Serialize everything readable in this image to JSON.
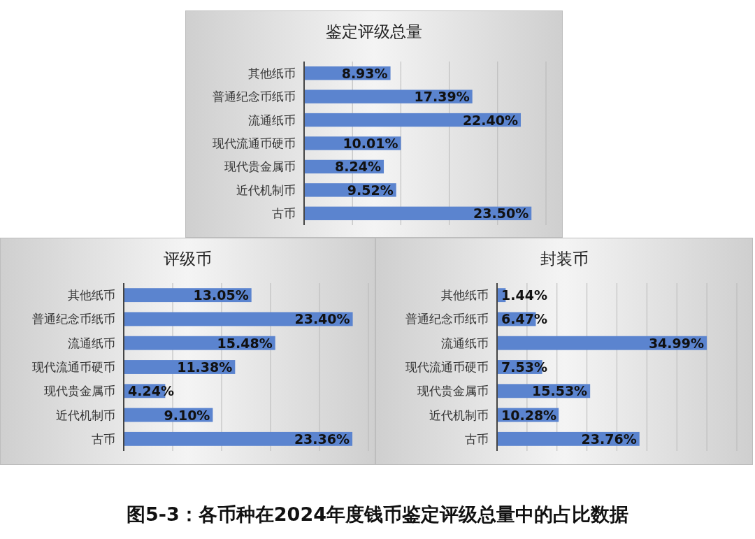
{
  "chart_data": [
    {
      "type": "bar",
      "orientation": "horizontal",
      "title": "鉴定评级总量",
      "categories": [
        "其他纸币",
        "普通纪念币纸币",
        "流通纸币",
        "现代流通币硬币",
        "现代贵金属币",
        "近代机制币",
        "古币"
      ],
      "values": [
        8.93,
        17.39,
        22.4,
        10.01,
        8.24,
        9.52,
        23.5
      ],
      "value_labels": [
        "8.93%",
        "17.39%",
        "22.40%",
        "10.01%",
        "8.24%",
        "9.52%",
        "23.50%"
      ],
      "color": "#5b84cf",
      "xlim": [
        0,
        25
      ],
      "xticks": [
        {
          "value": 0,
          "label": null
        },
        {
          "value": 5,
          "label": null
        },
        {
          "value": 10,
          "label": null
        },
        {
          "value": 15,
          "label": null
        },
        {
          "value": 20,
          "label": null
        },
        {
          "value": 25,
          "label": null
        }
      ],
      "tick_labels": "y",
      "grid": "x",
      "annotations": [
        "图5-3：各币种在2024年度钱币鉴定评级总量中的占比数据"
      ]
    },
    {
      "type": "bar",
      "orientation": "horizontal",
      "title": "评级币",
      "categories": [
        "其他纸币",
        "普通纪念币纸币",
        "流通纸币",
        "现代流通币硬币",
        "现代贵金属币",
        "近代机制币",
        "古币"
      ],
      "values": [
        13.05,
        23.4,
        15.48,
        11.38,
        4.24,
        9.1,
        23.36
      ],
      "value_labels": [
        "13.05%",
        "23.40%",
        "15.48%",
        "11.38%",
        "4.24%",
        "9.10%",
        "23.36%"
      ],
      "color": "#5b84cf",
      "xlim": [
        0,
        25
      ],
      "xticks": [
        {
          "value": 0,
          "label": null
        },
        {
          "value": 5,
          "label": null
        },
        {
          "value": 10,
          "label": null
        },
        {
          "value": 15,
          "label": null
        },
        {
          "value": 20,
          "label": null
        },
        {
          "value": 25,
          "label": null
        }
      ],
      "tick_labels": "y",
      "grid": "x"
    },
    {
      "type": "bar",
      "orientation": "horizontal",
      "title": "封装币",
      "categories": [
        "其他纸币",
        "普通纪念币纸币",
        "流通纸币",
        "现代流通币硬币",
        "现代贵金属币",
        "近代机制币",
        "古币"
      ],
      "values": [
        1.44,
        6.47,
        34.99,
        7.53,
        15.53,
        10.28,
        23.76
      ],
      "value_labels": [
        "1.44%",
        "6.47%",
        "34.99%",
        "7.53%",
        "15.53%",
        "10.28%",
        "23.76%"
      ],
      "color": "#5b84cf",
      "xlim": [
        0,
        40
      ],
      "xticks": [
        {
          "value": 0,
          "label": null
        },
        {
          "value": 5,
          "label": null
        },
        {
          "value": 10,
          "label": null
        },
        {
          "value": 15,
          "label": null
        },
        {
          "value": 20,
          "label": null
        },
        {
          "value": 25,
          "label": null
        },
        {
          "value": 30,
          "label": null
        },
        {
          "value": 35,
          "label": null
        },
        {
          "value": 40,
          "label": null
        }
      ],
      "tick_labels": "y",
      "grid": "x"
    }
  ]
}
